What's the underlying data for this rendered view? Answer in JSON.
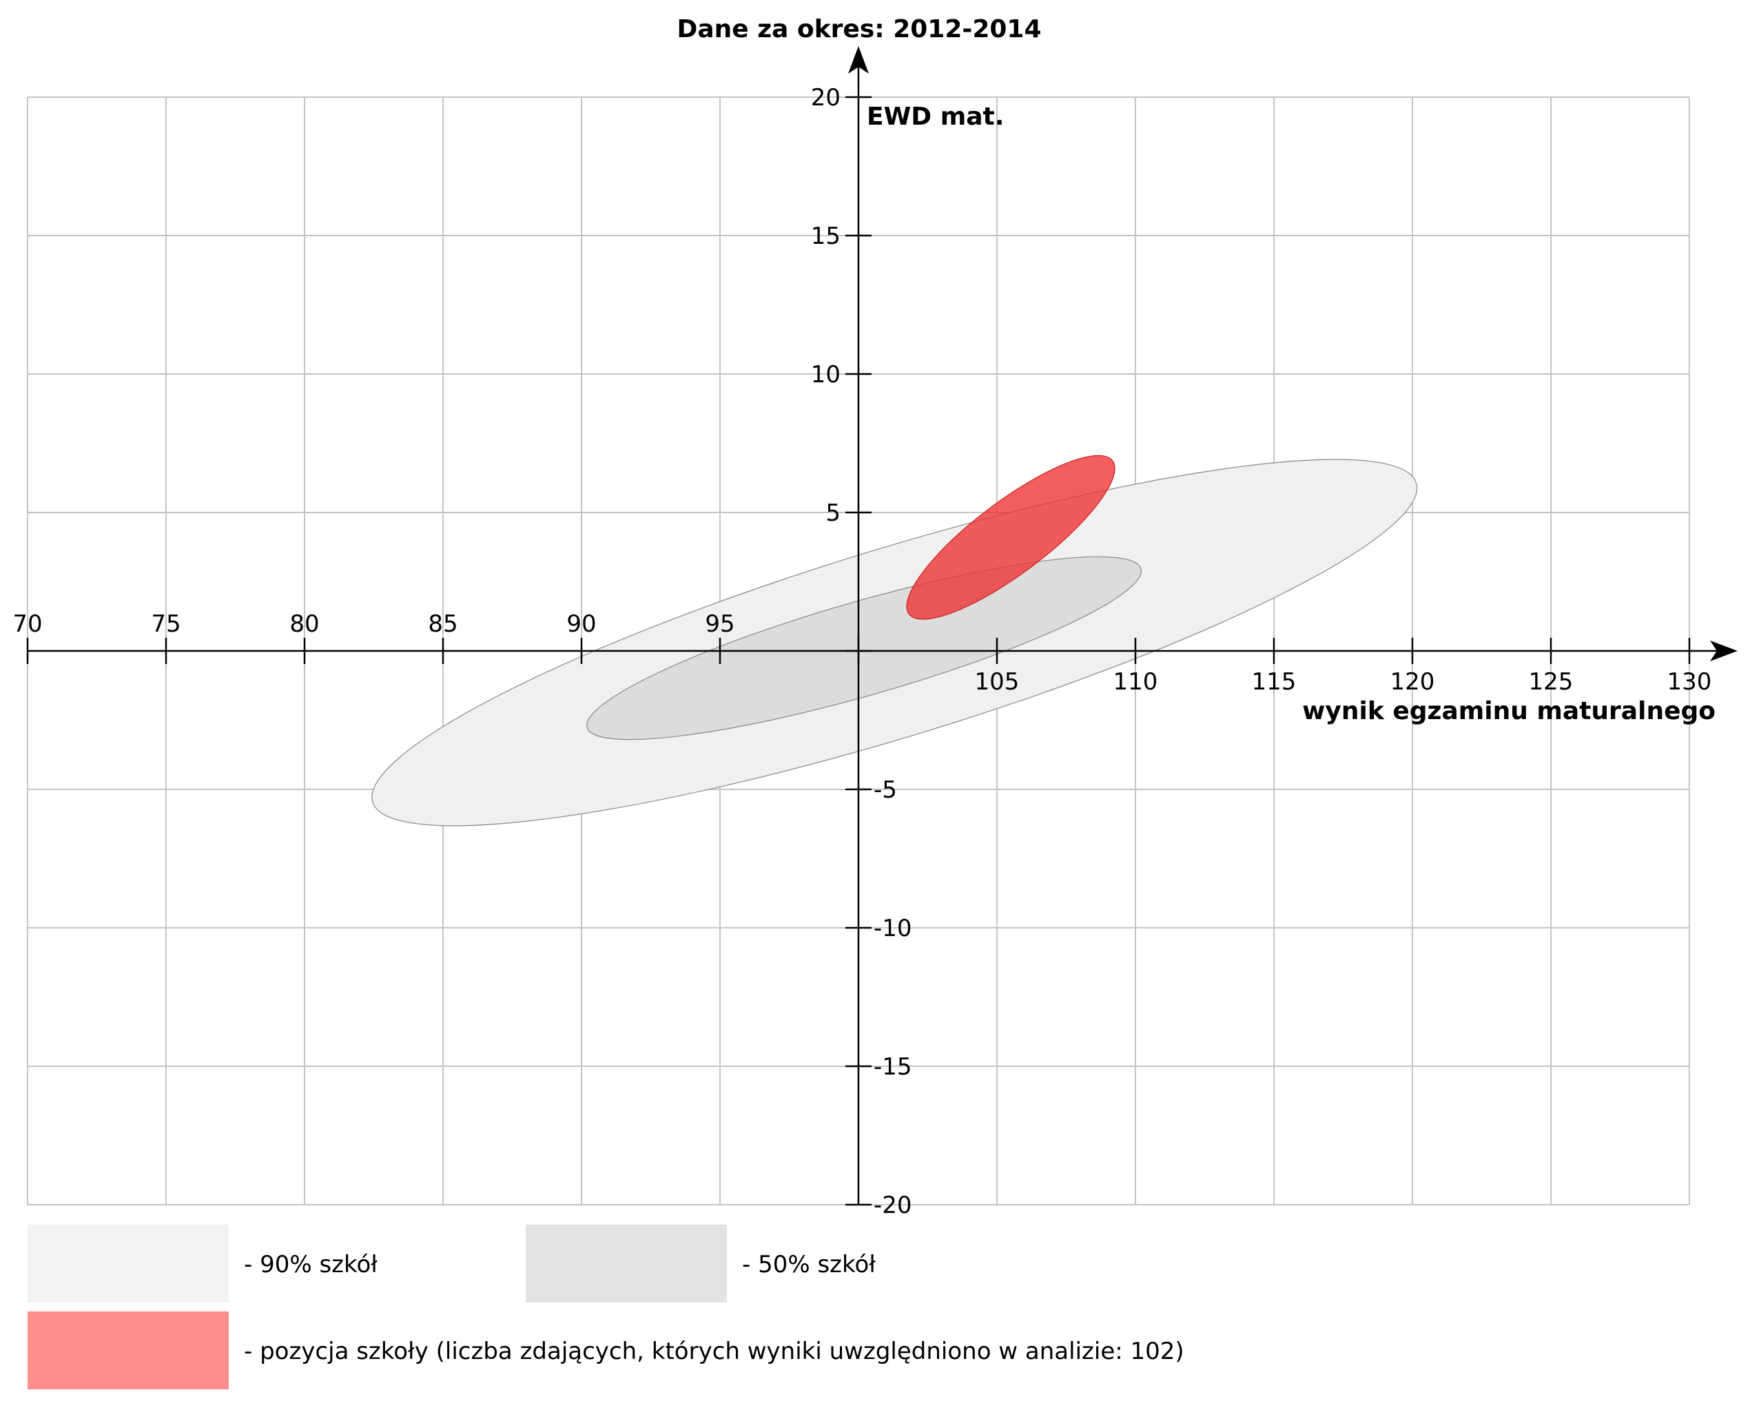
{
  "chart_data": {
    "type": "scatter",
    "title": "Dane za okres: 2012-2014",
    "xlabel": "wynik egzaminu maturalnego",
    "ylabel": "EWD mat.",
    "xlim": [
      70,
      130
    ],
    "ylim": [
      -20,
      20
    ],
    "x_ticks": [
      70,
      75,
      80,
      85,
      90,
      95,
      100,
      105,
      110,
      115,
      120,
      125,
      130
    ],
    "x_tick_labels": [
      "70",
      "75",
      "80",
      "85",
      "90",
      "95",
      "",
      "105",
      "110",
      "115",
      "120",
      "125",
      "130"
    ],
    "y_ticks": [
      -20,
      -15,
      -10,
      -5,
      0,
      5,
      10,
      15,
      20
    ],
    "y_tick_labels": [
      "-20",
      "-15",
      "-10",
      "-5",
      "",
      "5",
      "10",
      "15",
      "20"
    ],
    "grid": true,
    "axis_cross": [
      100,
      0
    ],
    "regions": [
      {
        "name": "- 90% szkół",
        "type": "ellipse",
        "center": [
          101.3,
          0.3
        ],
        "semi_axes": [
          19.7,
          3.4
        ],
        "angle_deg": 17,
        "fill": "#f0f0f0",
        "stroke": "#888888"
      },
      {
        "name": "- 50% szkół",
        "type": "ellipse",
        "center": [
          100.2,
          0.1
        ],
        "semi_axes": [
          10.4,
          1.7
        ],
        "angle_deg": 16,
        "fill": "#dcdcdc",
        "stroke": "#888888"
      },
      {
        "name": "- pozycja szkoły (liczba zdających, których wyniki uwzględniono w analizie: 102)",
        "type": "ellipse",
        "center": [
          105.5,
          4.1
        ],
        "semi_axes": [
          4.6,
          1.3
        ],
        "angle_deg": 37,
        "fill": "#f03030",
        "stroke": "#cc2020"
      }
    ],
    "legend": [
      {
        "label": "- 90% szkół",
        "color": "#f2f2f2"
      },
      {
        "label": "- 50% szkół",
        "color": "#e3e3e3"
      },
      {
        "label": "- pozycja szkoły (liczba zdających, których wyniki uwzględniono w analizie: 102)",
        "color": "#fe8d8d"
      }
    ],
    "legend_position": "bottom"
  }
}
